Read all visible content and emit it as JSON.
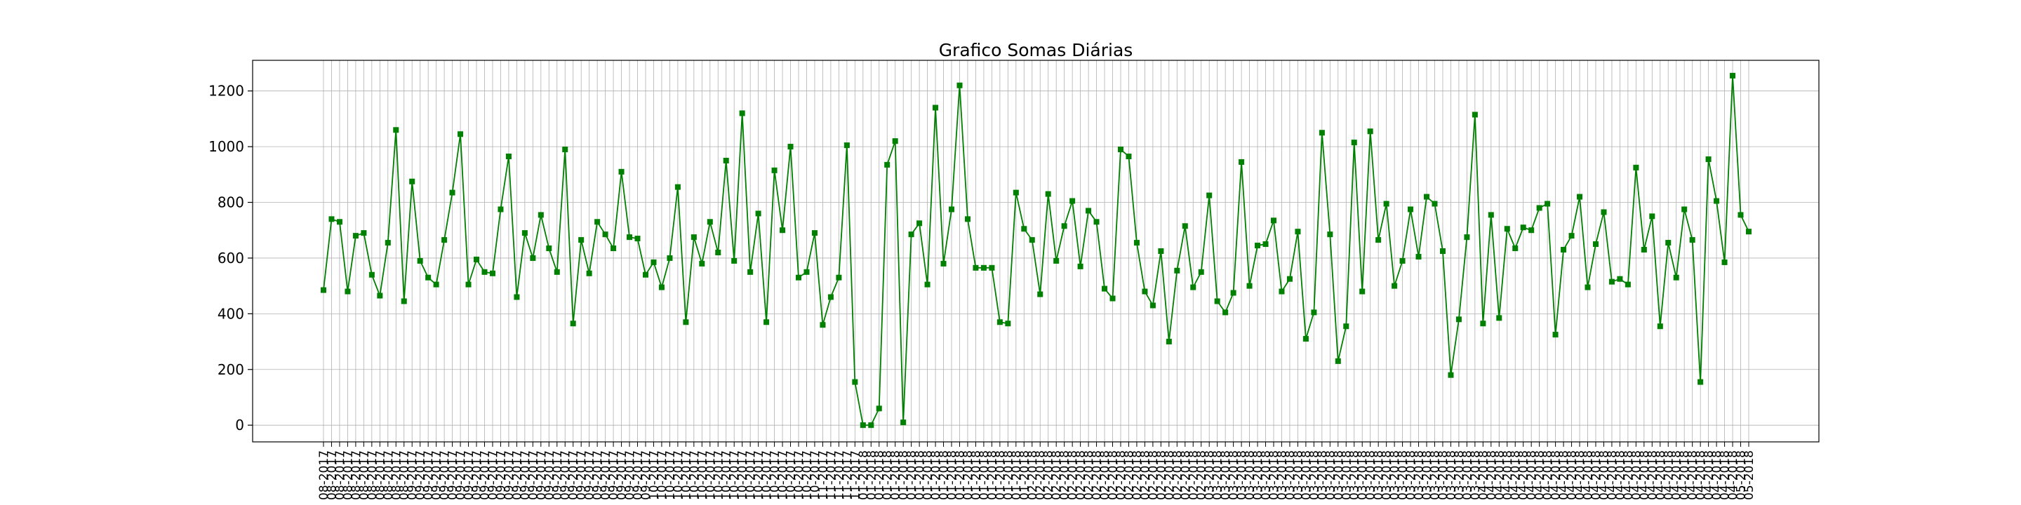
{
  "chart_data": {
    "type": "line",
    "title": "Grafico Somas Diárias",
    "xlabel": "",
    "ylabel": "",
    "ylim": [
      -60,
      1310
    ],
    "yticks": [
      0,
      200,
      400,
      600,
      800,
      1000,
      1200
    ],
    "grid": true,
    "line_color": "#008000",
    "marker": "square",
    "x_start_visible": "08-2017",
    "x_end_visible": "05-2018",
    "values": [
      485,
      740,
      730,
      480,
      680,
      690,
      540,
      465,
      655,
      1060,
      445,
      875,
      590,
      530,
      505,
      665,
      835,
      1045,
      505,
      595,
      550,
      545,
      775,
      965,
      460,
      690,
      600,
      755,
      635,
      550,
      990,
      365,
      665,
      545,
      730,
      685,
      635,
      910,
      675,
      670,
      540,
      585,
      495,
      600,
      855,
      370,
      675,
      580,
      730,
      620,
      950,
      590,
      1120,
      550,
      760,
      370,
      915,
      700,
      1000,
      530,
      550,
      690,
      360,
      460,
      530,
      1005,
      155,
      0,
      0,
      60,
      935,
      1020,
      10,
      685,
      725,
      505,
      1140,
      580,
      775,
      1220,
      740,
      565,
      565,
      565,
      370,
      365,
      835,
      705,
      665,
      470,
      830,
      590,
      715,
      805,
      570,
      770,
      730,
      490,
      455,
      990,
      965,
      655,
      480,
      430,
      625,
      300,
      555,
      715,
      495,
      550,
      825,
      445,
      405,
      475,
      945,
      500,
      645,
      650,
      735,
      480,
      525,
      695,
      310,
      405,
      1050,
      685,
      230,
      355,
      1015,
      480,
      1055,
      665,
      795,
      500,
      590,
      775,
      605,
      820,
      795,
      625,
      180,
      380,
      675,
      1115,
      365,
      755,
      385,
      705,
      635,
      710,
      700,
      780,
      795,
      325,
      630,
      680,
      820,
      495,
      650,
      765,
      515,
      525,
      505,
      925,
      630,
      750,
      355,
      655,
      530,
      775,
      665,
      155,
      955,
      805,
      585,
      1255,
      755,
      695
    ],
    "x_tick_labels": [
      "08-2017",
      "08-2017",
      "08-2017",
      "08-2017",
      "08-2017",
      "08-2017",
      "08-2017",
      "08-2017",
      "08-2017",
      "08-2017",
      "08-2017",
      "09-2017",
      "09-2017",
      "09-2017",
      "09-2017",
      "09-2017",
      "09-2017",
      "09-2017",
      "09-2017",
      "09-2017",
      "09-2017",
      "09-2017",
      "09-2017",
      "09-2017",
      "09-2017",
      "09-2017",
      "09-2017",
      "09-2017",
      "09-2017",
      "09-2017",
      "09-2017",
      "09-2017",
      "09-2017",
      "09-2017",
      "09-2017",
      "09-2017",
      "09-2017",
      "09-2017",
      "09-2017",
      "09-2017",
      "09-2017",
      "10-2017",
      "10-2017",
      "10-2017",
      "10-2017",
      "10-2017",
      "10-2017",
      "10-2017",
      "10-2017",
      "10-2017",
      "10-2017",
      "10-2017",
      "10-2017",
      "10-2017",
      "10-2017",
      "10-2017",
      "10-2017",
      "10-2017",
      "10-2017",
      "10-2017",
      "10-2017",
      "10-2017",
      "11-2017",
      "11-2017",
      "11-2017",
      "11-2017",
      "11-2017",
      "01-2018",
      "01-2018",
      "01-2018",
      "01-2018",
      "01-2018",
      "01-2018",
      "01-2018",
      "01-2018",
      "01-2018",
      "01-2018",
      "01-2018",
      "01-2018",
      "01-2018",
      "01-2018",
      "01-2018",
      "01-2018",
      "01-2018",
      "01-2018",
      "01-2018",
      "01-2018",
      "01-2018",
      "02-2018",
      "02-2018",
      "02-2018",
      "02-2018",
      "02-2018",
      "02-2018",
      "02-2018",
      "02-2018",
      "02-2018",
      "02-2018",
      "02-2018",
      "02-2018",
      "02-2018",
      "02-2018",
      "02-2018",
      "02-2018",
      "02-2018",
      "02-2018",
      "02-2018",
      "02-2018",
      "02-2018",
      "02-2018",
      "03-2018",
      "03-2018",
      "03-2018",
      "03-2018",
      "03-2018",
      "03-2018",
      "03-2018",
      "03-2018",
      "03-2018",
      "03-2018",
      "03-2018",
      "03-2018",
      "03-2018",
      "03-2018",
      "03-2018",
      "03-2018",
      "03-2018",
      "03-2018",
      "03-2018",
      "03-2018",
      "03-2018",
      "03-2018",
      "03-2018",
      "03-2018",
      "03-2018",
      "03-2018",
      "03-2018",
      "03-2018",
      "03-2018",
      "03-2018",
      "03-2018",
      "03-2018",
      "03-2018",
      "03-2018",
      "04-2018",
      "04-2018",
      "04-2018",
      "04-2018",
      "04-2018",
      "04-2018",
      "04-2018",
      "04-2018",
      "04-2018",
      "04-2018",
      "04-2018",
      "04-2018",
      "04-2018",
      "04-2018",
      "04-2018",
      "04-2018",
      "04-2018",
      "04-2018",
      "04-2018",
      "04-2018",
      "04-2018",
      "04-2018",
      "04-2018",
      "04-2018",
      "04-2018",
      "04-2018",
      "04-2018",
      "04-2018",
      "04-2018",
      "04-2018",
      "04-2018",
      "04-2018",
      "05-2018",
      "05-2018"
    ]
  }
}
